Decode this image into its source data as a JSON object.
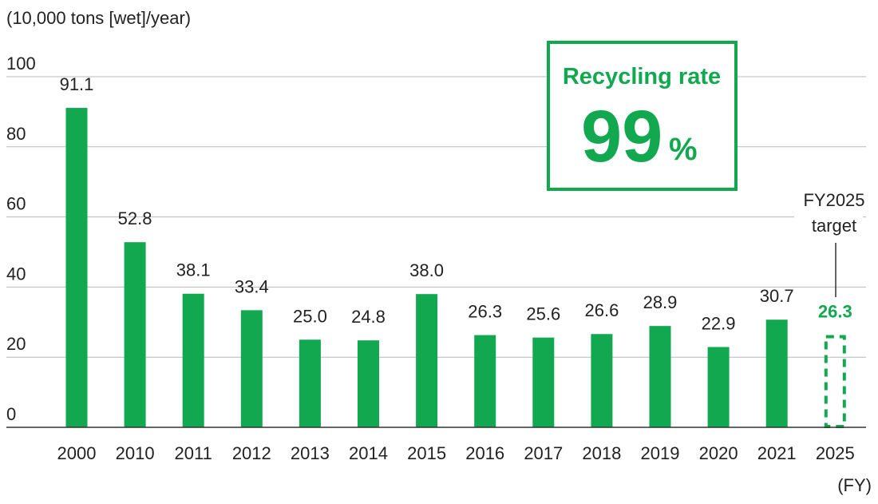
{
  "colors": {
    "bar": "#12a84f",
    "grid": "#b9b9b9",
    "axis": "#333333",
    "text": "#222222"
  },
  "chart_data": {
    "type": "bar",
    "ylabel": "(10,000 tons [wet]/year)",
    "xlabel": "(FY)",
    "ylim": [
      0,
      100
    ],
    "yticks": [
      0,
      20,
      40,
      60,
      80,
      100
    ],
    "categories": [
      "2000",
      "2010",
      "2011",
      "2012",
      "2013",
      "2014",
      "2015",
      "2016",
      "2017",
      "2018",
      "2019",
      "2020",
      "2021",
      "2025"
    ],
    "values": [
      91.1,
      52.8,
      38.1,
      33.4,
      25.0,
      24.8,
      38.0,
      26.3,
      25.6,
      26.6,
      28.9,
      22.9,
      30.7,
      26.3
    ],
    "value_labels": [
      "91.1",
      "52.8",
      "38.1",
      "33.4",
      "25.0",
      "24.8",
      "38.0",
      "26.3",
      "25.6",
      "26.6",
      "28.9",
      "22.9",
      "30.7",
      "26.3"
    ],
    "target": {
      "category": "2025",
      "value": 26.3,
      "label": "26.3",
      "note_line1": "FY2025",
      "note_line2": "target",
      "style": "dashed"
    },
    "recycling_box": {
      "title": "Recycling rate",
      "value": "99",
      "unit": "%"
    }
  }
}
